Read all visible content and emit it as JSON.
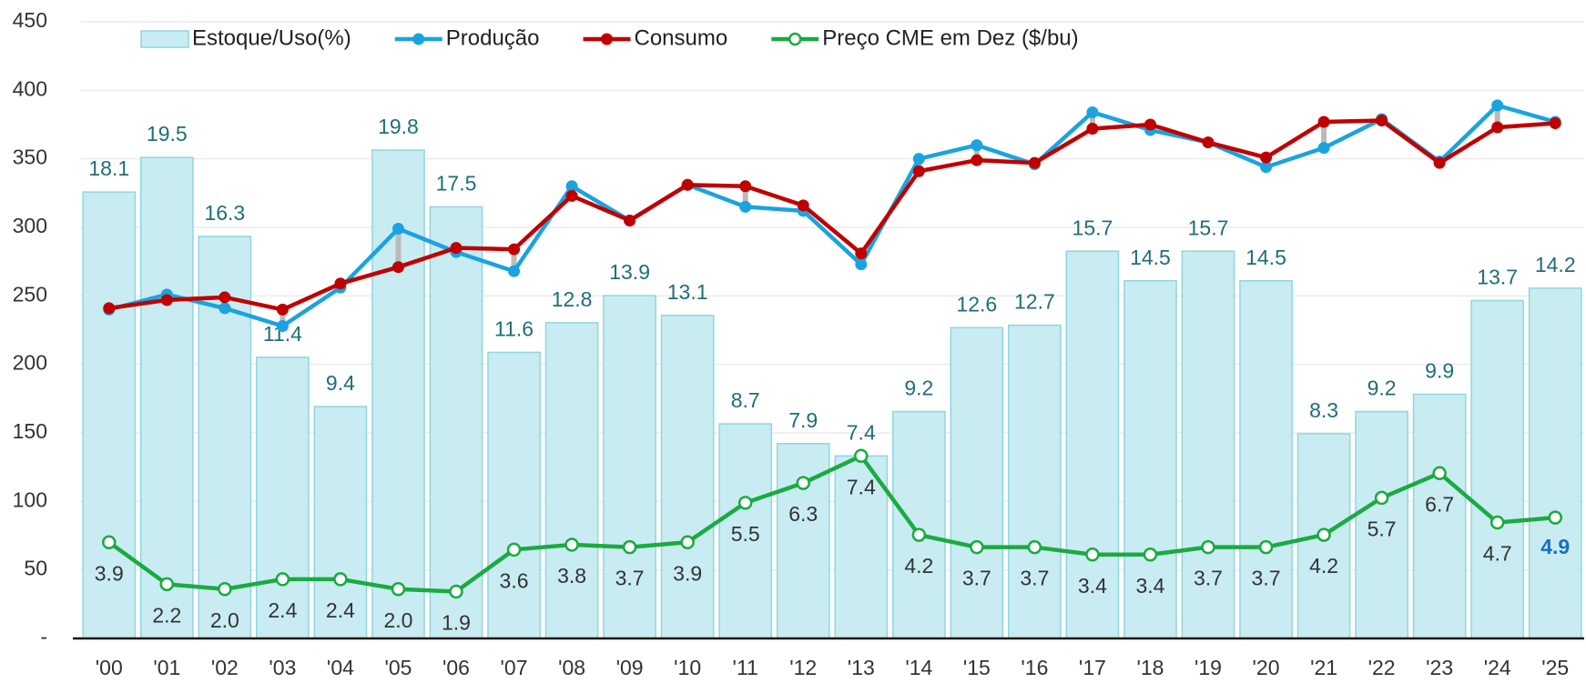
{
  "chart_data": {
    "type": "bar",
    "categories": [
      "'00",
      "'01",
      "'02",
      "'03",
      "'04",
      "'05",
      "'06",
      "'07",
      "'08",
      "'09",
      "'10",
      "'11",
      "'12",
      "'13",
      "'14",
      "'15",
      "'16",
      "'17",
      "'18",
      "'19",
      "'20",
      "'21",
      "'22",
      "'23",
      "'24",
      "'25"
    ],
    "ylim": [
      0,
      450
    ],
    "yticks": [
      {
        "value": 0,
        "label": "-"
      },
      50,
      100,
      150,
      200,
      250,
      300,
      350,
      400,
      450
    ],
    "y2lim": [
      0,
      25
    ],
    "grid": true,
    "legend": "top",
    "series": [
      {
        "name": "Estoque/Uso(%)",
        "type": "bar",
        "axis": "y2",
        "color": "#c8ecf2",
        "values": [
          18.1,
          19.5,
          16.3,
          11.4,
          9.4,
          19.8,
          17.5,
          11.6,
          12.8,
          13.9,
          13.1,
          8.7,
          7.9,
          7.4,
          9.2,
          12.6,
          12.7,
          15.7,
          14.5,
          15.7,
          14.5,
          8.3,
          9.2,
          9.9,
          13.7,
          14.2
        ]
      },
      {
        "name": "Produção",
        "type": "line",
        "color": "#1aa3e0",
        "values": [
          240,
          251,
          241,
          228,
          256,
          299,
          282,
          268,
          330,
          305,
          331,
          315,
          312,
          273,
          350,
          360,
          346,
          384,
          371,
          362,
          344,
          358,
          379,
          348,
          389,
          377
        ]
      },
      {
        "name": "Consumo",
        "type": "line",
        "color": "#c00000",
        "values": [
          241,
          247,
          249,
          240,
          259,
          271,
          285,
          284,
          323,
          305,
          331,
          330,
          316,
          281,
          341,
          349,
          347,
          372,
          375,
          362,
          351,
          377,
          378,
          347,
          373,
          376
        ]
      },
      {
        "name": "Preço CME em Dez ($/bu)",
        "type": "line",
        "axis": "y2",
        "color": "#1aab40",
        "values": [
          3.9,
          2.2,
          2.0,
          2.4,
          2.4,
          2.0,
          1.9,
          3.6,
          3.8,
          3.7,
          3.9,
          5.5,
          6.3,
          7.4,
          4.2,
          3.7,
          3.7,
          3.4,
          3.4,
          3.7,
          3.7,
          4.2,
          5.7,
          6.7,
          4.7,
          4.9
        ],
        "value_labels": [
          "3.9",
          "2.2",
          "2.0",
          "2.4",
          "2.4",
          "2.0",
          "1.9",
          "3.6",
          "3.8",
          "3.7",
          "3.9",
          "5.5",
          "6.3",
          "7.4",
          "4.2",
          "3.7",
          "3.7",
          "3.4",
          "3.4",
          "3.7",
          "3.7",
          "4.2",
          "5.7",
          "6.7",
          "4.7",
          "4.9"
        ]
      }
    ]
  }
}
